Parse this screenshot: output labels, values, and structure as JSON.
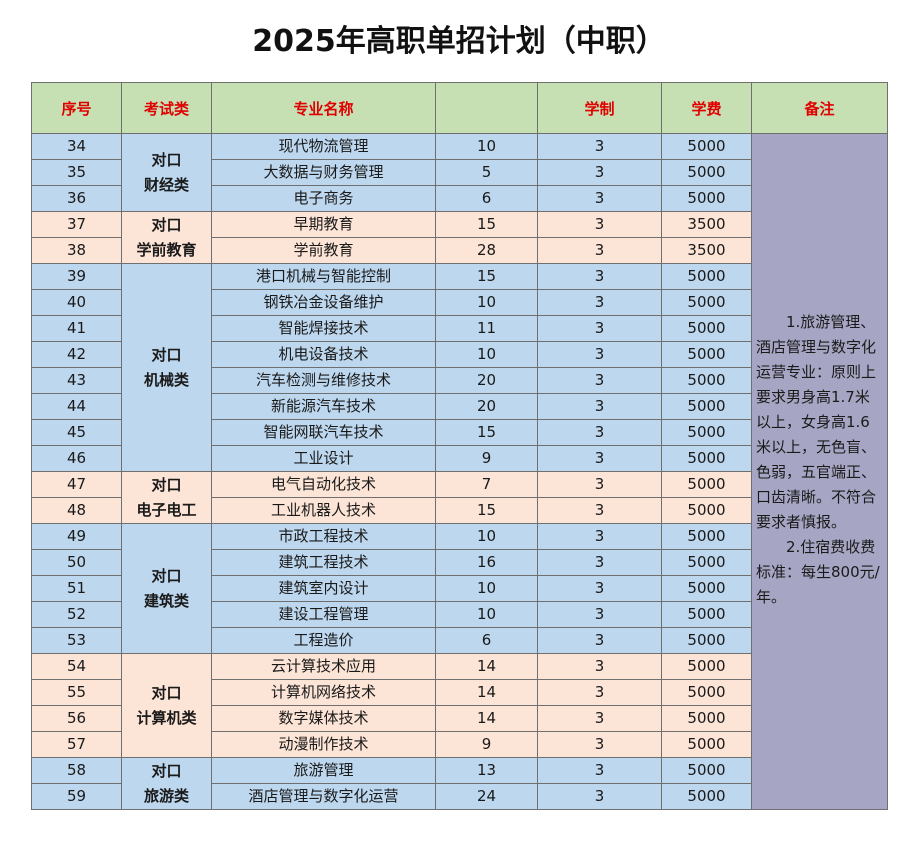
{
  "title": "2025年高职单招计划（中职）",
  "headers": [
    "序号",
    "考试类",
    "专业名称",
    "",
    "学制",
    "学费",
    "备注"
  ],
  "groups": [
    {
      "category_line1": "对口",
      "category_line2": "财经类",
      "color": "blue",
      "rows": [
        {
          "no": "34",
          "major": "现代物流管理",
          "plan": "10",
          "years": "3",
          "fee": "5000"
        },
        {
          "no": "35",
          "major": "大数据与财务管理",
          "plan": "5",
          "years": "3",
          "fee": "5000"
        },
        {
          "no": "36",
          "major": "电子商务",
          "plan": "6",
          "years": "3",
          "fee": "5000"
        }
      ]
    },
    {
      "category_line1": "对口",
      "category_line2": "学前教育",
      "color": "peach",
      "rows": [
        {
          "no": "37",
          "major": "早期教育",
          "plan": "15",
          "years": "3",
          "fee": "3500"
        },
        {
          "no": "38",
          "major": "学前教育",
          "plan": "28",
          "years": "3",
          "fee": "3500"
        }
      ]
    },
    {
      "category_line1": "对口",
      "category_line2": "机械类",
      "color": "blue",
      "rows": [
        {
          "no": "39",
          "major": "港口机械与智能控制",
          "plan": "15",
          "years": "3",
          "fee": "5000"
        },
        {
          "no": "40",
          "major": "钢铁冶金设备维护",
          "plan": "10",
          "years": "3",
          "fee": "5000"
        },
        {
          "no": "41",
          "major": "智能焊接技术",
          "plan": "11",
          "years": "3",
          "fee": "5000"
        },
        {
          "no": "42",
          "major": "机电设备技术",
          "plan": "10",
          "years": "3",
          "fee": "5000"
        },
        {
          "no": "43",
          "major": "汽车检测与维修技术",
          "plan": "20",
          "years": "3",
          "fee": "5000"
        },
        {
          "no": "44",
          "major": "新能源汽车技术",
          "plan": "20",
          "years": "3",
          "fee": "5000"
        },
        {
          "no": "45",
          "major": "智能网联汽车技术",
          "plan": "15",
          "years": "3",
          "fee": "5000"
        },
        {
          "no": "46",
          "major": "工业设计",
          "plan": "9",
          "years": "3",
          "fee": "5000"
        }
      ]
    },
    {
      "category_line1": "对口",
      "category_line2": "电子电工",
      "color": "peach",
      "rows": [
        {
          "no": "47",
          "major": "电气自动化技术",
          "plan": "7",
          "years": "3",
          "fee": "5000"
        },
        {
          "no": "48",
          "major": "工业机器人技术",
          "plan": "15",
          "years": "3",
          "fee": "5000"
        }
      ]
    },
    {
      "category_line1": "对口",
      "category_line2": "建筑类",
      "color": "blue",
      "rows": [
        {
          "no": "49",
          "major": "市政工程技术",
          "plan": "10",
          "years": "3",
          "fee": "5000"
        },
        {
          "no": "50",
          "major": "建筑工程技术",
          "plan": "16",
          "years": "3",
          "fee": "5000"
        },
        {
          "no": "51",
          "major": "建筑室内设计",
          "plan": "10",
          "years": "3",
          "fee": "5000"
        },
        {
          "no": "52",
          "major": "建设工程管理",
          "plan": "10",
          "years": "3",
          "fee": "5000"
        },
        {
          "no": "53",
          "major": "工程造价",
          "plan": "6",
          "years": "3",
          "fee": "5000"
        }
      ]
    },
    {
      "category_line1": "对口",
      "category_line2": "计算机类",
      "color": "peach",
      "rows": [
        {
          "no": "54",
          "major": "云计算技术应用",
          "plan": "14",
          "years": "3",
          "fee": "5000"
        },
        {
          "no": "55",
          "major": "计算机网络技术",
          "plan": "14",
          "years": "3",
          "fee": "5000"
        },
        {
          "no": "56",
          "major": "数字媒体技术",
          "plan": "14",
          "years": "3",
          "fee": "5000"
        },
        {
          "no": "57",
          "major": "动漫制作技术",
          "plan": "9",
          "years": "3",
          "fee": "5000"
        }
      ]
    },
    {
      "category_line1": "对口",
      "category_line2": "旅游类",
      "color": "blue",
      "rows": [
        {
          "no": "58",
          "major": "旅游管理",
          "plan": "13",
          "years": "3",
          "fee": "5000"
        },
        {
          "no": "59",
          "major": "酒店管理与数字化运营",
          "plan": "24",
          "years": "3",
          "fee": "5000"
        }
      ]
    }
  ],
  "remarks": [
    "1.旅游管理、酒店管理与数字化运营专业：原则上要求男身高1.7米以上，女身高1.6米以上，无色盲、色弱，五官端正、口齿清晰。不符合要求者慎报。",
    "2.住宿费收费标准：每生800元/年。"
  ],
  "colors": {
    "header_bg": "#c6e0b4",
    "header_text": "#e00000",
    "row_blue": "#bdd7ee",
    "row_peach": "#fce4d6",
    "remarks_bg": "#a6a6c4"
  }
}
